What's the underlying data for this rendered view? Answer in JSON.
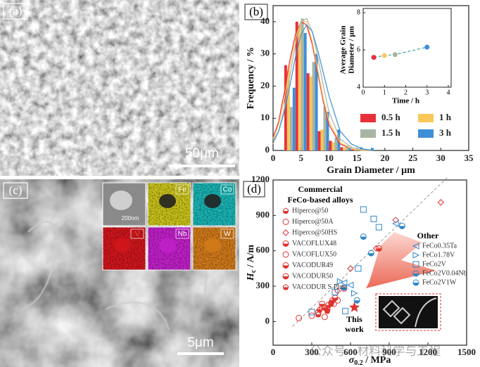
{
  "panels": {
    "a": {
      "label": "(a)",
      "scale_bar": "50μm"
    },
    "c": {
      "label": "(c)",
      "scale_bar": "5μm",
      "inset_scale": "200nm",
      "maps": [
        {
          "label": "Fe",
          "color": "#c8c21a"
        },
        {
          "label": "Co",
          "color": "#1ab3b3"
        },
        {
          "label": "V",
          "color": "#d0161c"
        },
        {
          "label": "Nb",
          "color": "#c020c8"
        },
        {
          "label": "W",
          "color": "#d07a1a"
        }
      ]
    }
  },
  "watermark": "公众号 · 材料科学与工程",
  "chart_data": [
    {
      "type": "histogram",
      "label": "(b)",
      "x_label": "Grain Diameter / μm",
      "y_label": "Frequency / %",
      "xlim": [
        0,
        35
      ],
      "xticks": [
        0,
        5,
        10,
        15,
        20,
        25,
        30,
        35
      ],
      "ylim": [
        0,
        45
      ],
      "yticks": [
        0,
        10,
        20,
        30,
        40
      ],
      "x": [
        3,
        5,
        7,
        9,
        11,
        13,
        15,
        17
      ],
      "fit_x": [
        0,
        1,
        2,
        3,
        4,
        5,
        6,
        7,
        8,
        9,
        10,
        12,
        14,
        16,
        18
      ],
      "series": [
        {
          "name": "0.5 h",
          "color": "#e8303a",
          "values": [
            26.5,
            40,
            24,
            6,
            3,
            1,
            0.5,
            0.3
          ],
          "fit": [
            4,
            9,
            18,
            28,
            36,
            40,
            39,
            33,
            24,
            15,
            8,
            2,
            0.5,
            0,
            0
          ]
        },
        {
          "name": "1    h",
          "color": "#f9c75a",
          "values": [
            25,
            39,
            23,
            6.5,
            2.5,
            1,
            0.5,
            0.3
          ],
          "fit": [
            3.5,
            8,
            16,
            26,
            35,
            40,
            40,
            34,
            25,
            16,
            9,
            2.5,
            0.5,
            0,
            0
          ]
        },
        {
          "name": "1.5 h",
          "color": "#a8b5a3",
          "values": [
            13.5,
            41,
            27.5,
            13.5,
            4,
            1.5,
            0.5,
            0.3
          ],
          "fit": [
            2,
            6,
            13,
            23,
            33,
            40,
            41,
            37,
            29,
            20,
            12,
            3.5,
            1,
            0.2,
            0
          ]
        },
        {
          "name": "3    h",
          "color": "#3e8fd6",
          "values": [
            19.5,
            36.5,
            30,
            12,
            6.5,
            1,
            1,
            0.8
          ],
          "fit": [
            3,
            6,
            12,
            20,
            29,
            36,
            39,
            37,
            31,
            24,
            17,
            6,
            2,
            0.5,
            0
          ]
        }
      ]
    },
    {
      "type": "line",
      "x_label": "Time / h",
      "y_label": [
        "Average Grain",
        "Diameter / μm"
      ],
      "xlim": [
        0,
        4
      ],
      "xticks": [
        0,
        1,
        2,
        3,
        4
      ],
      "ylim": [
        4,
        8
      ],
      "yticks": [
        4,
        6,
        8
      ],
      "x": [
        0.5,
        1,
        1.5,
        3
      ],
      "values": [
        5.6,
        5.7,
        5.75,
        6.15
      ],
      "colors": [
        "#e8303a",
        "#f9c75a",
        "#a8b5a3",
        "#3e8fd6"
      ],
      "line_color": "#3aa0a0"
    },
    {
      "type": "scatter",
      "label": "(d)",
      "x_label": {
        "symbol": "σ",
        "sub": "0.2",
        "unit": " / MPa"
      },
      "y_label": {
        "symbol": "H",
        "sub": "c",
        "unit": " / A/m"
      },
      "xlim": [
        0,
        1500
      ],
      "xticks": [
        0,
        300,
        600,
        900,
        1200,
        1500
      ],
      "ylim": [
        -200,
        1200
      ],
      "yticks": [
        0,
        300,
        600,
        900,
        1200
      ],
      "groups": [
        {
          "title": [
            "Commercial",
            "FeCo-based alloys"
          ],
          "color": "#e0322e"
        },
        {
          "title": [
            "Other"
          ],
          "color": "#2f86cc"
        }
      ],
      "trend_line": {
        "x": [
          150,
          1350
        ],
        "values": [
          -40,
          1220
        ]
      },
      "this_work": {
        "label": [
          "This",
          "work"
        ],
        "x": 630,
        "value": 120,
        "color": "#e0322e"
      },
      "series": [
        {
          "name": "Hiperco@50",
          "group": 0,
          "marker": "pentagon",
          "fill": "half",
          "x": [
            350,
            420,
            450
          ],
          "values": [
            60,
            90,
            150
          ]
        },
        {
          "name": "Hiperco@50A",
          "group": 0,
          "marker": "circle",
          "fill": "open",
          "x": [
            300,
            380,
            500,
            400
          ],
          "values": [
            50,
            120,
            180,
            40
          ]
        },
        {
          "name": "Hiperco@50HS",
          "group": 0,
          "marker": "diamond",
          "fill": "open",
          "x": [
            500,
            600,
            800,
            950,
            1300
          ],
          "values": [
            260,
            450,
            620,
            860,
            1010
          ]
        },
        {
          "name": "VACOFLUX48",
          "group": 0,
          "marker": "circle",
          "fill": "half",
          "x": [
            400,
            430,
            460
          ],
          "values": [
            120,
            140,
            180
          ]
        },
        {
          "name": "VACOFLUX50",
          "group": 0,
          "marker": "circle",
          "fill": "open",
          "x": [
            200,
            350,
            470,
            550
          ],
          "values": [
            30,
            80,
            150,
            280
          ]
        },
        {
          "name": "VACODUR49",
          "group": 0,
          "marker": "circle",
          "fill": "half",
          "x": [
            420,
            480
          ],
          "values": [
            110,
            200
          ]
        },
        {
          "name": "VACODUR50",
          "group": 0,
          "marker": "circle",
          "fill": "half",
          "x": [
            380,
            820
          ],
          "values": [
            150,
            620
          ]
        },
        {
          "name": "VACODUR S Plus",
          "group": 0,
          "marker": "pentagon",
          "fill": "half",
          "x": [
            360,
            450
          ],
          "values": [
            100,
            160
          ]
        },
        {
          "name": "FeCo0.35Ta",
          "group": 1,
          "marker": "triangle-left",
          "fill": "open",
          "x": [
            550,
            600,
            950
          ],
          "values": [
            330,
            310,
            830
          ]
        },
        {
          "name": "FeCo1.78V",
          "group": 1,
          "marker": "triangle-right",
          "fill": "open",
          "x": [
            520,
            630
          ],
          "values": [
            340,
            240
          ]
        },
        {
          "name": "FeCo2V",
          "group": 1,
          "marker": "square",
          "fill": "open",
          "x": [
            300,
            480,
            560,
            660,
            700,
            780,
            820
          ],
          "values": [
            80,
            250,
            90,
            450,
            950,
            870,
            800
          ]
        },
        {
          "name": "FeCo2V0.04Nb",
          "group": 1,
          "marker": "circle",
          "fill": "half",
          "x": [
            700,
            760,
            1000
          ],
          "values": [
            720,
            580,
            810
          ]
        },
        {
          "name": "FeCo2V1W",
          "group": 1,
          "marker": "circle",
          "fill": "half",
          "x": [
            550,
            650
          ],
          "values": [
            290,
            180
          ]
        }
      ]
    }
  ]
}
